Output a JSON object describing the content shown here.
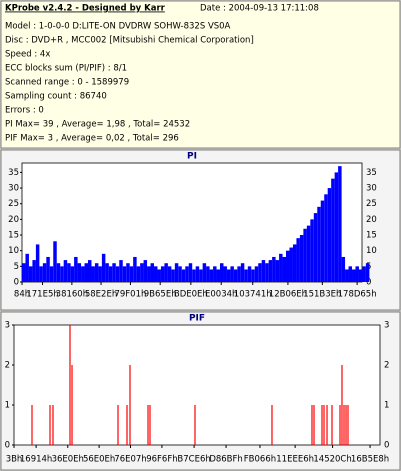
{
  "header": {
    "title": "KProbe v2.4.2 - Designed by Karr",
    "date": "Date : 2004-09-13 17:11:08"
  },
  "info": [
    "Model : 1-0-0-0 D:LITE-ON DVDRW SOHW-832S  VS0A",
    "Disc : DVD+R , MCC002 [Mitsubishi Chemical Corporation]",
    "Speed : 4x",
    "ECC blocks sum (PI/PIF) : 8/1",
    "Scanned range : 0 - 1589979",
    "Sampling count : 86740",
    "Errors : 0",
    "PI Max= 39 , Average= 1,98 , Total= 24532",
    "PIF Max= 3 , Average= 0,02 , Total= 296"
  ],
  "chart_data": [
    {
      "type": "bar",
      "title": "PI",
      "xlim": [
        0,
        1566000
      ],
      "ylim": [
        0,
        38
      ],
      "yticks": [
        0,
        5,
        10,
        15,
        20,
        25,
        30,
        35
      ],
      "xticks": [
        {
          "value": 132,
          "label": "84h"
        },
        {
          "value": 94693,
          "label": "171E5h"
        },
        {
          "value": 229728,
          "label": "38160h"
        },
        {
          "value": 364078,
          "label": "58E2Eh"
        },
        {
          "value": 499457,
          "label": "79F01h"
        },
        {
          "value": 636510,
          "label": "9B65Eh"
        },
        {
          "value": 777742,
          "label": "BDE0Eh"
        },
        {
          "value": 917556,
          "label": "E0034h"
        },
        {
          "value": 1062721,
          "label": "103741h"
        },
        {
          "value": 1224814,
          "label": "12B06Eh"
        },
        {
          "value": 1383230,
          "label": "151B3Eh"
        },
        {
          "value": 1543525,
          "label": "178D65h"
        }
      ],
      "grid": false,
      "x": [
        0,
        16000,
        32000,
        48000,
        64000,
        80000,
        96000,
        112000,
        128000,
        144000,
        160000,
        176000,
        192000,
        208000,
        224000,
        240000,
        256000,
        272000,
        288000,
        304000,
        320000,
        336000,
        352000,
        368000,
        384000,
        400000,
        416000,
        432000,
        448000,
        464000,
        480000,
        496000,
        512000,
        528000,
        544000,
        560000,
        576000,
        592000,
        608000,
        624000,
        640000,
        656000,
        672000,
        688000,
        704000,
        720000,
        736000,
        752000,
        768000,
        784000,
        800000,
        816000,
        832000,
        848000,
        864000,
        880000,
        896000,
        912000,
        928000,
        944000,
        960000,
        976000,
        992000,
        1008000,
        1024000,
        1040000,
        1056000,
        1072000,
        1088000,
        1104000,
        1120000,
        1136000,
        1152000,
        1168000,
        1184000,
        1200000,
        1216000,
        1232000,
        1248000,
        1264000,
        1280000,
        1296000,
        1312000,
        1328000,
        1344000,
        1360000,
        1376000,
        1392000,
        1408000,
        1424000,
        1440000,
        1456000,
        1472000,
        1488000,
        1504000,
        1520000,
        1536000,
        1552000,
        1568000,
        1584000
      ],
      "series": [
        {
          "name": "PI",
          "color": "#0000ff",
          "values": [
            6,
            9,
            5,
            7,
            12,
            5,
            6,
            8,
            5,
            13,
            6,
            5,
            7,
            6,
            5,
            8,
            6,
            5,
            6,
            7,
            5,
            6,
            5,
            9,
            6,
            5,
            6,
            5,
            7,
            5,
            6,
            5,
            8,
            5,
            6,
            7,
            5,
            6,
            5,
            4,
            5,
            6,
            5,
            4,
            6,
            5,
            4,
            5,
            6,
            4,
            5,
            4,
            6,
            5,
            4,
            5,
            4,
            6,
            5,
            4,
            5,
            4,
            5,
            6,
            4,
            5,
            4,
            5,
            6,
            7,
            6,
            7,
            8,
            7,
            9,
            8,
            10,
            11,
            12,
            14,
            15,
            17,
            18,
            20,
            22,
            24,
            26,
            28,
            30,
            33,
            35,
            37,
            8,
            4,
            5,
            4,
            5,
            4,
            5,
            6
          ]
        }
      ]
    },
    {
      "type": "bar",
      "title": "PIF",
      "xlim": [
        0,
        1530000
      ],
      "ylim": [
        0,
        3
      ],
      "yticks": [
        0,
        1,
        2,
        3
      ],
      "xticks": [
        {
          "value": 59,
          "label": "3Bh"
        },
        {
          "value": 92436,
          "label": "16914h"
        },
        {
          "value": 224782,
          "label": "36E0Eh"
        },
        {
          "value": 355854,
          "label": "56E0Eh"
        },
        {
          "value": 486919,
          "label": "76E07h"
        },
        {
          "value": 618351,
          "label": "96F6Fh"
        },
        {
          "value": 752870,
          "label": "B7CE6h"
        },
        {
          "value": 886463,
          "label": "D86BFh"
        },
        {
          "value": 1028198,
          "label": "FB066h"
        },
        {
          "value": 1175270,
          "label": "11EEE6h"
        },
        {
          "value": 1331724,
          "label": "14520Ch"
        },
        {
          "value": 1488360,
          "label": "16B5E8h"
        }
      ],
      "grid": false,
      "x": [
        75250,
        150500,
        163000,
        234100,
        242500,
        434800,
        472400,
        484900,
        560200,
        568500,
        756600,
        1078500,
        1245700,
        1254100,
        1287500,
        1295900,
        1308500,
        1329300,
        1362800,
        1371100,
        1379500,
        1387900,
        1396200
      ],
      "series": [
        {
          "name": "PIF",
          "color": "#ff0000",
          "values": [
            1,
            1,
            1,
            3,
            2,
            1,
            1,
            2,
            1,
            1,
            1,
            1,
            1,
            1,
            1,
            1,
            1,
            1,
            1,
            2,
            1,
            1,
            1
          ]
        }
      ]
    }
  ]
}
